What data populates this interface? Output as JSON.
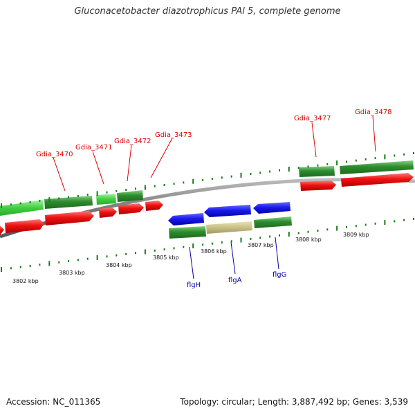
{
  "title": "Gluconacetobacter diazotrophicus PAl 5, complete genome",
  "accession": "Accession: NC_011365",
  "summary": "Topology: circular; Length: 3,887,492 bp; Genes: 3,539",
  "colors": {
    "forward_green": "#2f8f2f",
    "light_green": "#49d149",
    "reverse_red": "#ee1111",
    "blue": "#1111dd",
    "tan": "#c8bf86",
    "backbone": "#8a8a8a",
    "tick": "#1a7a1a",
    "red_label": "#dd0000",
    "blue_label": "#0000aa"
  },
  "red_genes": {
    "gdia_3470": "Gdia_3470",
    "gdia_3471": "Gdia_3471",
    "gdia_3472": "Gdia_3472",
    "gdia_3473": "Gdia_3473",
    "gdia_3477": "Gdia_3477",
    "gdia_3478": "Gdia_3478"
  },
  "blue_genes": {
    "flgh": "flgH",
    "flga": "flgA",
    "flgg": "flgG"
  },
  "ticks": {
    "k3802": "3802 kbp",
    "k3803": "3803 kbp",
    "k3804": "3804 kbp",
    "k3805": "3805 kbp",
    "k3806": "3806 kbp",
    "k3807": "3807 kbp",
    "k3808": "3808 kbp",
    "k3809": "3809 kbp"
  }
}
